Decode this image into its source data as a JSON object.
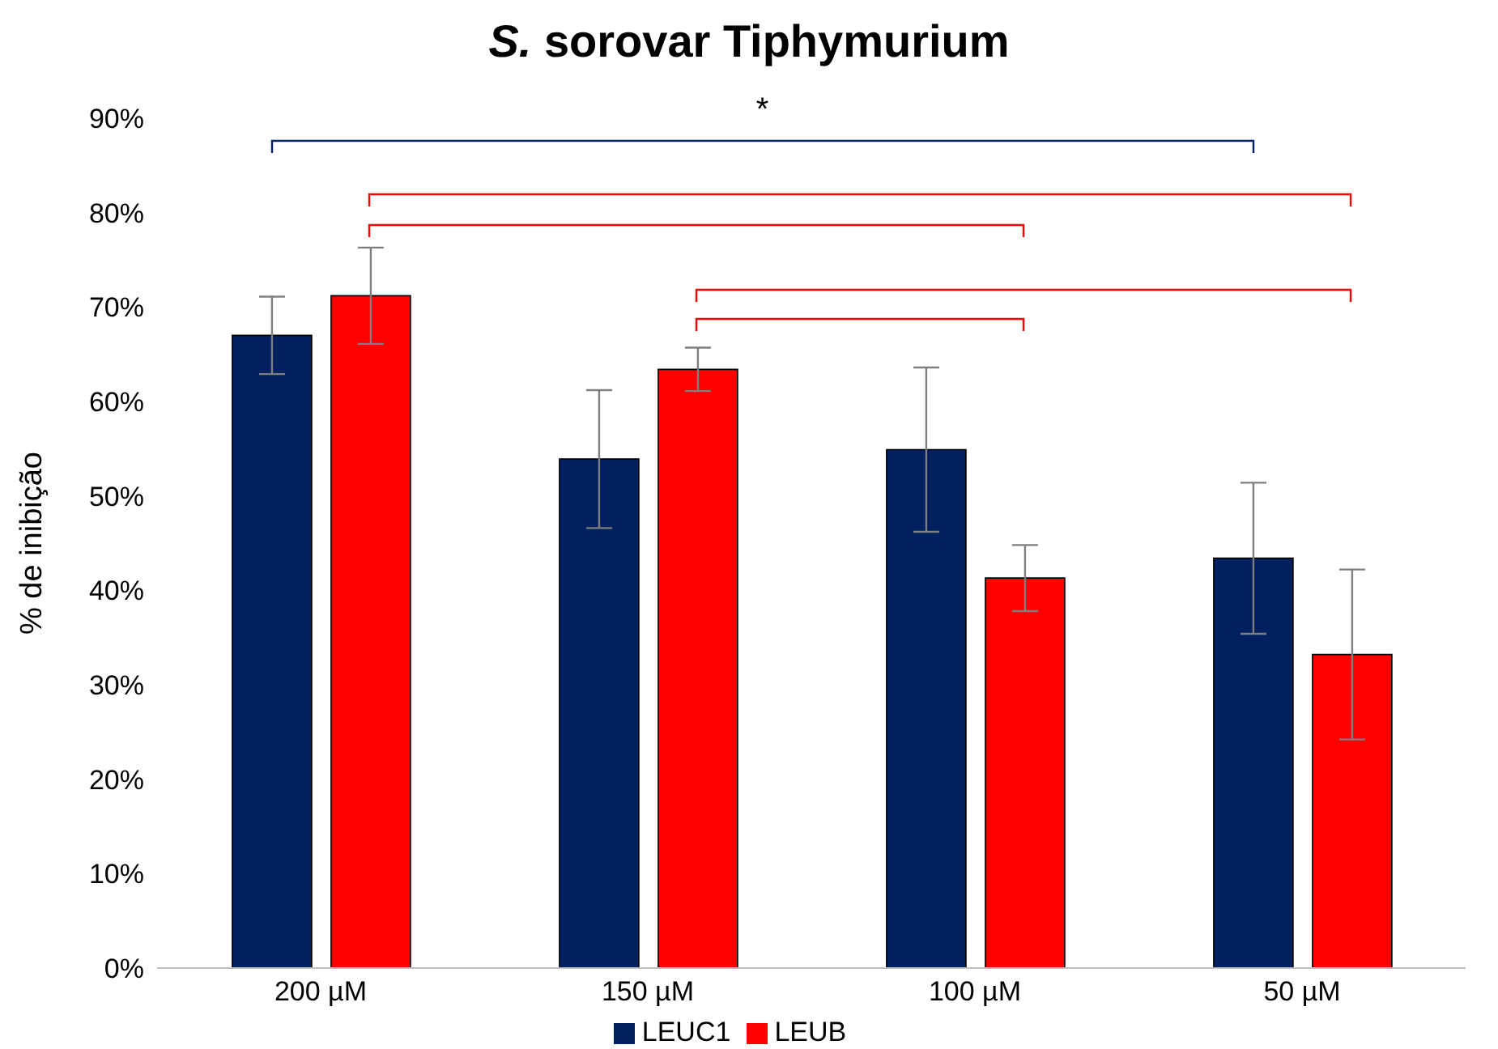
{
  "chart_data": {
    "type": "bar",
    "title": "S. sorovar Tiphymurium",
    "ylabel": "% de inibição",
    "categories": [
      "200 µM",
      "150 µM",
      "100 µM",
      "50 µM"
    ],
    "series": [
      {
        "name": "LEUC1",
        "color": "#002060",
        "values": [
          67.0,
          53.9,
          54.9,
          43.4
        ],
        "errors": [
          4.1,
          7.3,
          8.7,
          8.0
        ]
      },
      {
        "name": "LEUB",
        "color": "#ff0000",
        "values": [
          71.2,
          63.4,
          41.3,
          33.2
        ],
        "errors": [
          5.1,
          2.3,
          3.5,
          9.0
        ]
      }
    ],
    "ylim": [
      0,
      90
    ],
    "yticks": [
      {
        "value": 0,
        "label": "0%"
      },
      {
        "value": 10,
        "label": "10%"
      },
      {
        "value": 20,
        "label": "20%"
      },
      {
        "value": 30,
        "label": "30%"
      },
      {
        "value": 40,
        "label": "40%"
      },
      {
        "value": 50,
        "label": "50%"
      },
      {
        "value": 60,
        "label": "60%"
      },
      {
        "value": 70,
        "label": "70%"
      },
      {
        "value": 80,
        "label": "80%"
      },
      {
        "value": 90,
        "label": "90%"
      }
    ],
    "annotations": [
      "*"
    ],
    "legend": "bottom",
    "grid": false
  }
}
